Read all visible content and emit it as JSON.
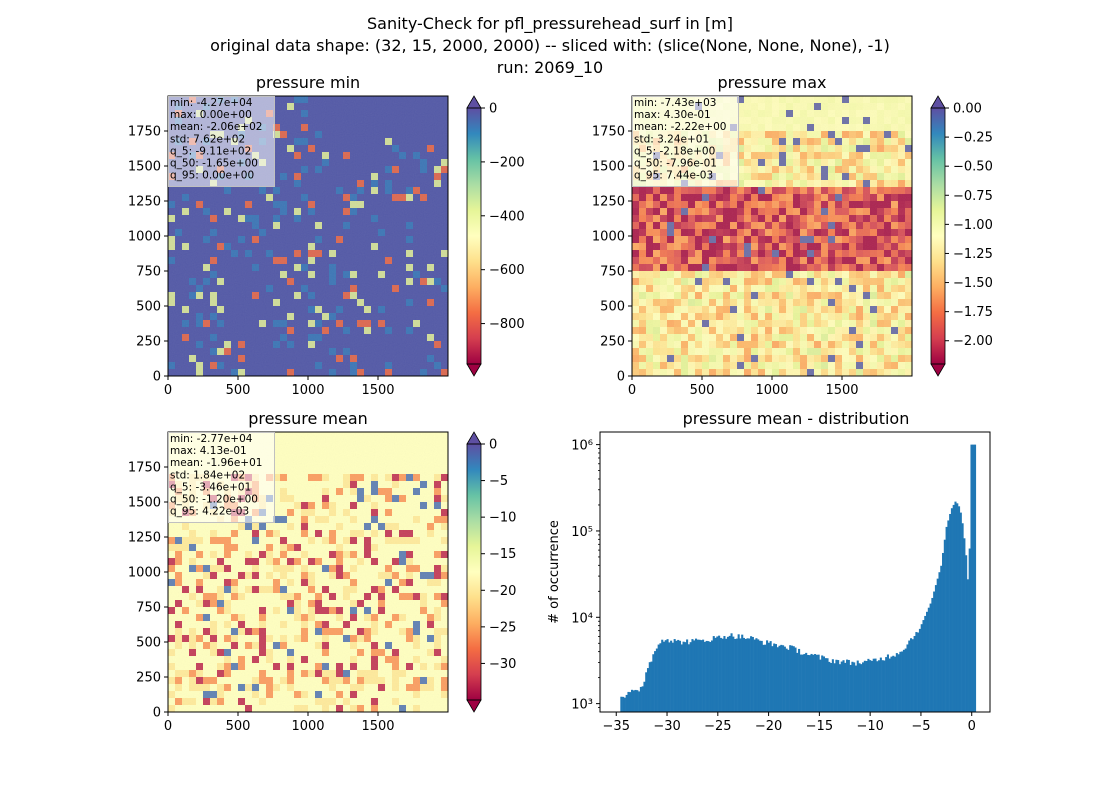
{
  "suptitle": [
    "Sanity-Check for pfl_pressurehead_surf in [m]",
    "original data shape: (32, 15, 2000, 2000) -- sliced with: (slice(None, None, None), -1)",
    "run: 2069_10"
  ],
  "colors": {
    "spectral": [
      "#9e0142",
      "#d53e4f",
      "#f46d43",
      "#fdae61",
      "#fee08b",
      "#ffffbf",
      "#e6f598",
      "#abdda4",
      "#66c2a5",
      "#3288bd",
      "#5e4fa2"
    ],
    "hist_bar": "#1f77b4"
  },
  "chart_data": [
    {
      "type": "heatmap",
      "title": "pressure min",
      "colormap": "Spectral",
      "colorbar": {
        "ticks": [
          "0",
          "−200",
          "−400",
          "−600",
          "−800"
        ],
        "range": [
          -950,
          0
        ],
        "extend": "both"
      },
      "x_ticks": [
        "0",
        "500",
        "1000",
        "1500"
      ],
      "y_ticks": [
        "0",
        "250",
        "500",
        "750",
        "1000",
        "1250",
        "1500",
        "1750"
      ],
      "extent": [
        0,
        2000
      ],
      "stats": [
        "min: -4.27e+04",
        "max: 0.00e+00",
        "mean: -2.06e+02",
        "std: 7.62e+02",
        "q_5: -9.11e+02",
        "q_50: -1.65e+00",
        "q_95: 0.00e+00"
      ]
    },
    {
      "type": "heatmap",
      "title": "pressure max",
      "colormap": "Spectral",
      "colorbar": {
        "ticks": [
          "0.00",
          "−0.25",
          "−0.50",
          "−0.75",
          "−1.00",
          "−1.25",
          "−1.50",
          "−1.75",
          "−2.00"
        ],
        "range": [
          -2.2,
          0
        ],
        "extend": "both"
      },
      "x_ticks": [
        "0",
        "500",
        "1000",
        "1500"
      ],
      "y_ticks": [
        "0",
        "250",
        "500",
        "750",
        "1000",
        "1250",
        "1500",
        "1750"
      ],
      "extent": [
        0,
        2000
      ],
      "stats": [
        "min: -7.43e+03",
        "max: 4.30e-01",
        "mean: -2.22e+00",
        "std: 3.24e+01",
        "q_5: -2.18e+00",
        "q_50: -7.96e-01",
        "q_95: 7.44e-03"
      ]
    },
    {
      "type": "heatmap",
      "title": "pressure mean",
      "colormap": "Spectral",
      "colorbar": {
        "ticks": [
          "0",
          "−5",
          "−10",
          "−15",
          "−20",
          "−25",
          "−30"
        ],
        "range": [
          -35,
          0
        ],
        "extend": "both"
      },
      "x_ticks": [
        "0",
        "500",
        "1000",
        "1500"
      ],
      "y_ticks": [
        "0",
        "250",
        "500",
        "750",
        "1000",
        "1250",
        "1500",
        "1750"
      ],
      "extent": [
        0,
        2000
      ],
      "stats": [
        "min: -2.77e+04",
        "max: 4.13e-01",
        "mean: -1.96e+01",
        "std: 1.84e+02",
        "q_5: -3.46e+01",
        "q_50: -1.20e+00",
        "q_95: 4.22e-03"
      ]
    },
    {
      "type": "bar",
      "title": "pressure mean - distribution",
      "ylabel": "# of occurrence",
      "yscale": "log",
      "xlim": [
        -36.6,
        1.8
      ],
      "ylim": [
        800,
        1400000
      ],
      "x_ticks": [
        -35,
        -30,
        -25,
        -20,
        -15,
        -10,
        -5,
        0
      ],
      "x_tick_labels": [
        "−35",
        "−30",
        "−25",
        "−20",
        "−15",
        "−10",
        "−5",
        "0"
      ],
      "y_ticks": [
        "10³",
        "10⁴",
        "10⁵",
        "10⁶"
      ],
      "bin_range": [
        -34.6,
        0.4
      ],
      "bins": 200,
      "profile_x": [
        -34.6,
        -34.3,
        -34.0,
        -33.0,
        -32.4,
        -32.0,
        -31.0,
        -30.5,
        -30.0,
        -29.0,
        -27.0,
        -25.0,
        -24.0,
        -22.0,
        -20.0,
        -18.0,
        -16.0,
        -14.0,
        -12.0,
        -10.5,
        -9.0,
        -8.0,
        -7.0,
        -6.0,
        -5.0,
        -4.0,
        -3.0,
        -2.5,
        -2.0,
        -1.6,
        -1.3,
        -1.0,
        -0.6,
        -0.3,
        0.0,
        0.4
      ],
      "profile_y": [
        1300,
        1200,
        1300,
        1350,
        1600,
        2500,
        4500,
        5700,
        5600,
        5200,
        5300,
        5800,
        6200,
        5800,
        5000,
        4500,
        3700,
        3200,
        3000,
        3000,
        3300,
        3600,
        4000,
        5500,
        8000,
        15000,
        40000,
        110000,
        180000,
        220000,
        200000,
        150000,
        60000,
        20000,
        1000000,
        1000000
      ]
    }
  ]
}
